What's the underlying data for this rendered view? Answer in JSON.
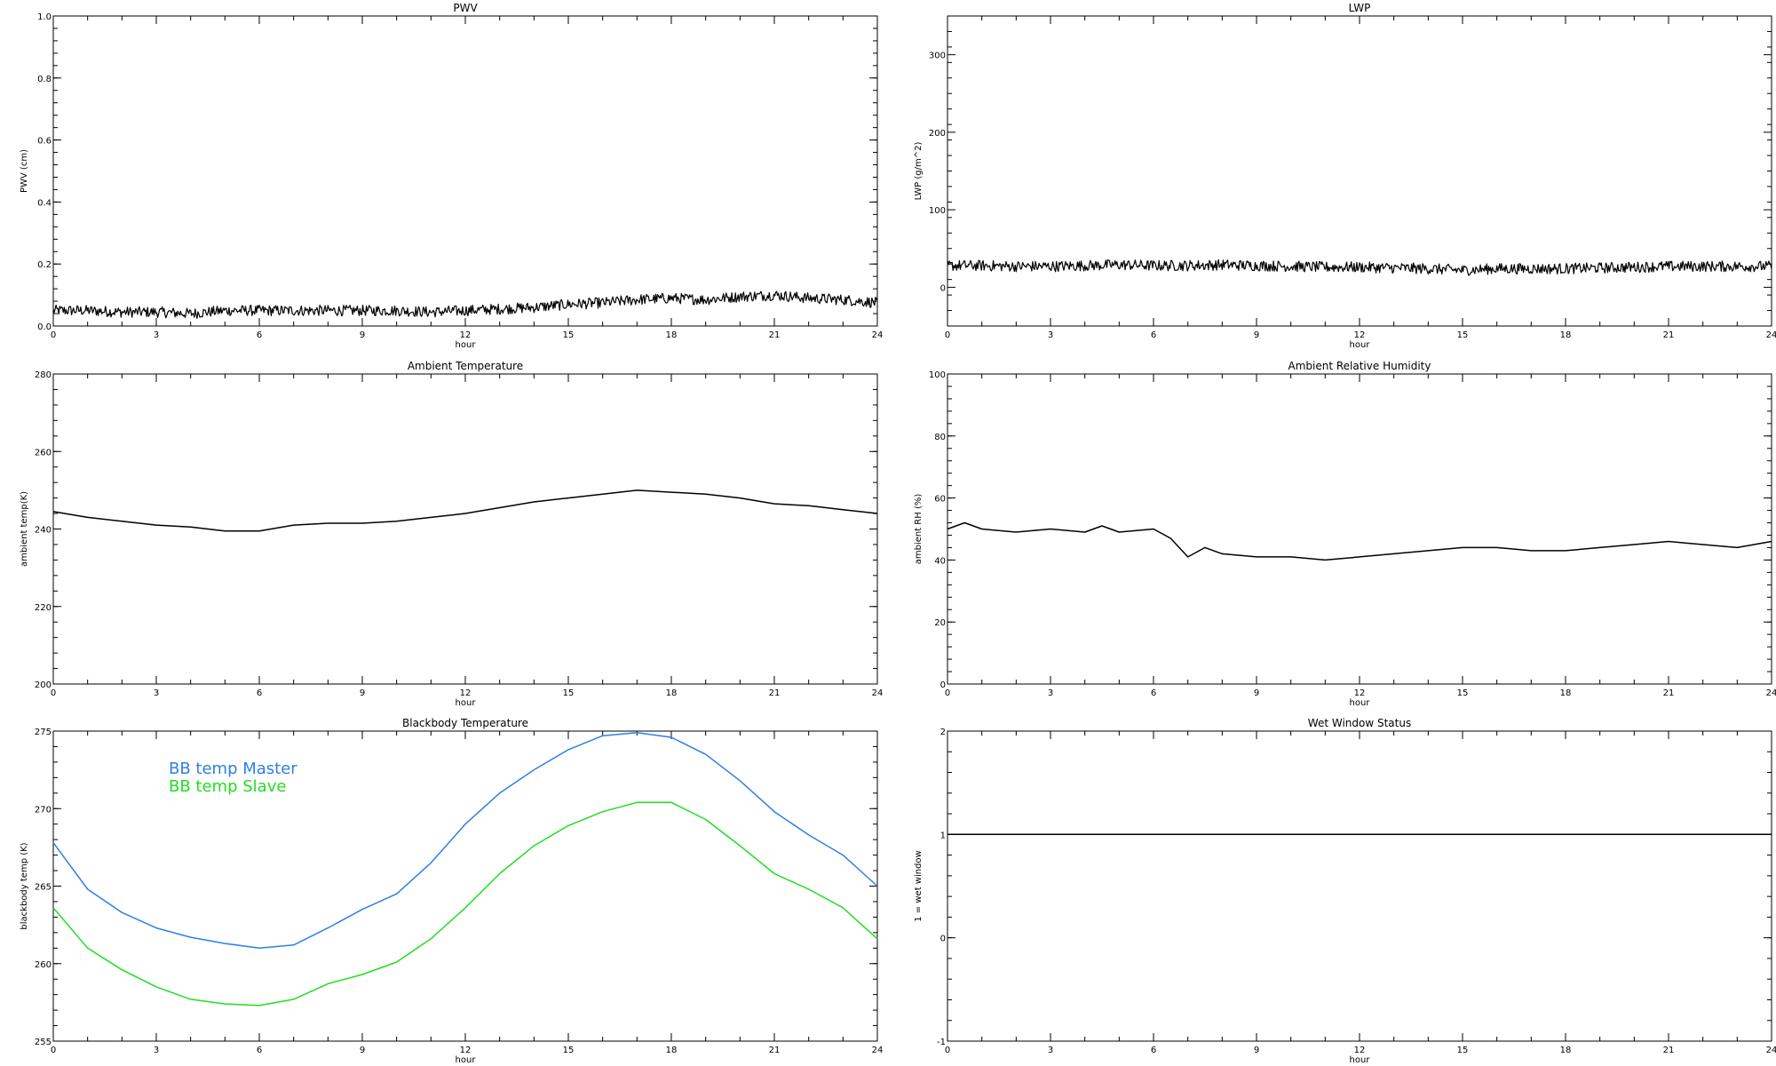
{
  "chart_data": [
    {
      "id": "pwv",
      "type": "line",
      "title": "PWV",
      "xlabel": "hour",
      "ylabel": "PWV (cm)",
      "xlim": [
        0,
        24
      ],
      "ylim": [
        0,
        1
      ],
      "xticks": [
        "0",
        "3",
        "6",
        "9",
        "12",
        "15",
        "18",
        "21",
        "24"
      ],
      "yticks": [
        "0.0",
        "0.2",
        "0.4",
        "0.6",
        "0.8",
        "1.0"
      ],
      "yticks_values": [
        0,
        0.2,
        0.4,
        0.6,
        0.8,
        1.0
      ],
      "noisy": true,
      "series": [
        {
          "color": "#000000",
          "x": [
            0,
            1,
            2,
            3,
            4,
            5,
            6,
            7,
            8,
            9,
            10,
            11,
            12,
            13,
            14,
            15,
            16,
            17,
            18,
            19,
            20,
            21,
            22,
            23,
            24
          ],
          "y": [
            0.05,
            0.05,
            0.045,
            0.045,
            0.04,
            0.05,
            0.05,
            0.05,
            0.05,
            0.05,
            0.05,
            0.045,
            0.05,
            0.055,
            0.06,
            0.07,
            0.075,
            0.085,
            0.09,
            0.085,
            0.095,
            0.1,
            0.09,
            0.085,
            0.075
          ]
        }
      ]
    },
    {
      "id": "lwp",
      "type": "line",
      "title": "LWP",
      "xlabel": "hour",
      "ylabel": "LWP (g/m^2)",
      "xlim": [
        0,
        24
      ],
      "ylim": [
        -50,
        350
      ],
      "xticks": [
        "0",
        "3",
        "6",
        "9",
        "12",
        "15",
        "18",
        "21",
        "24"
      ],
      "yticks": [
        "0",
        "100",
        "200",
        "300"
      ],
      "yticks_values": [
        0,
        100,
        200,
        300
      ],
      "noisy": true,
      "series": [
        {
          "color": "#000000",
          "x": [
            0,
            1,
            2,
            3,
            4,
            5,
            6,
            7,
            8,
            9,
            10,
            11,
            12,
            13,
            14,
            15,
            16,
            17,
            18,
            19,
            20,
            21,
            22,
            23,
            24
          ],
          "y": [
            28,
            28,
            27,
            27,
            28,
            29,
            28,
            28,
            29,
            28,
            27,
            26,
            26,
            25,
            24,
            22,
            24,
            24,
            24,
            25,
            26,
            27,
            27,
            27,
            27
          ]
        }
      ]
    },
    {
      "id": "ambient-temp",
      "type": "line",
      "title": "Ambient Temperature",
      "xlabel": "hour",
      "ylabel": "ambient temp(K)",
      "xlim": [
        0,
        24
      ],
      "ylim": [
        200,
        280
      ],
      "xticks": [
        "0",
        "3",
        "6",
        "9",
        "12",
        "15",
        "18",
        "21",
        "24"
      ],
      "yticks": [
        "200",
        "220",
        "240",
        "260",
        "280"
      ],
      "yticks_values": [
        200,
        220,
        240,
        260,
        280
      ],
      "noisy": false,
      "series": [
        {
          "color": "#000000",
          "x": [
            0,
            1,
            2,
            3,
            4,
            5,
            6,
            7,
            8,
            9,
            10,
            11,
            12,
            13,
            14,
            15,
            16,
            17,
            18,
            19,
            20,
            21,
            22,
            23,
            24
          ],
          "y": [
            244.5,
            243,
            242,
            241,
            240.5,
            239.5,
            239.5,
            241,
            241.5,
            241.5,
            242,
            243,
            244,
            245.5,
            247,
            248,
            249,
            250,
            249.5,
            249,
            248,
            246.5,
            246,
            245,
            244
          ]
        }
      ]
    },
    {
      "id": "ambient-rh",
      "type": "line",
      "title": "Ambient Relative Humidity",
      "xlabel": "hour",
      "ylabel": "ambient RH (%)",
      "xlim": [
        0,
        24
      ],
      "ylim": [
        0,
        100
      ],
      "xticks": [
        "0",
        "3",
        "6",
        "9",
        "12",
        "15",
        "18",
        "21",
        "24"
      ],
      "yticks": [
        "0",
        "20",
        "40",
        "60",
        "80",
        "100"
      ],
      "yticks_values": [
        0,
        20,
        40,
        60,
        80,
        100
      ],
      "noisy": false,
      "series": [
        {
          "color": "#000000",
          "x": [
            0,
            0.5,
            1,
            2,
            3,
            4,
            4.5,
            5,
            6,
            6.5,
            7,
            7.5,
            8,
            9,
            10,
            11,
            12,
            13,
            14,
            15,
            16,
            17,
            18,
            19,
            20,
            21,
            22,
            23,
            24
          ],
          "y": [
            50,
            52,
            50,
            49,
            50,
            49,
            51,
            49,
            50,
            47,
            41,
            44,
            42,
            41,
            41,
            40,
            41,
            42,
            43,
            44,
            44,
            43,
            43,
            44,
            45,
            46,
            45,
            44,
            46
          ]
        }
      ]
    },
    {
      "id": "blackbody-temp",
      "type": "line",
      "title": "Blackbody Temperature",
      "xlabel": "hour",
      "ylabel": "blackbody temp (K)",
      "xlim": [
        0,
        24
      ],
      "ylim": [
        255,
        275
      ],
      "xticks": [
        "0",
        "3",
        "6",
        "9",
        "12",
        "15",
        "18",
        "21",
        "24"
      ],
      "yticks": [
        "255",
        "260",
        "265",
        "270",
        "275"
      ],
      "yticks_values": [
        255,
        260,
        265,
        270,
        275
      ],
      "noisy": false,
      "legend": {
        "location": "upper-left",
        "entries": [
          "BB temp Master",
          "BB temp Slave"
        ]
      },
      "series": [
        {
          "name": "BB temp Master",
          "color": "#2f7fe6",
          "x": [
            0,
            1,
            2,
            3,
            4,
            5,
            6,
            7,
            8,
            9,
            10,
            11,
            12,
            13,
            14,
            15,
            16,
            17,
            18,
            19,
            20,
            21,
            22,
            23,
            24
          ],
          "y": [
            267.8,
            264.8,
            263.3,
            262.3,
            261.7,
            261.3,
            261,
            261.2,
            262.3,
            263.5,
            264.5,
            266.5,
            269,
            271,
            272.5,
            273.8,
            274.7,
            274.9,
            274.6,
            273.5,
            271.8,
            269.8,
            268.3,
            267,
            265
          ]
        },
        {
          "name": "BB temp Slave",
          "color": "#22dd22",
          "x": [
            0,
            1,
            2,
            3,
            4,
            5,
            6,
            7,
            8,
            9,
            10,
            11,
            12,
            13,
            14,
            15,
            16,
            17,
            18,
            19,
            20,
            21,
            22,
            23,
            24
          ],
          "y": [
            263.6,
            261,
            259.6,
            258.5,
            257.7,
            257.4,
            257.3,
            257.7,
            258.7,
            259.3,
            260.1,
            261.6,
            263.6,
            265.8,
            267.6,
            268.9,
            269.8,
            270.4,
            270.4,
            269.3,
            267.6,
            265.8,
            264.8,
            263.6,
            261.6
          ]
        }
      ]
    },
    {
      "id": "wet-window",
      "type": "line",
      "title": "Wet Window Status",
      "xlabel": "hour",
      "ylabel": "1 = wet window",
      "xlim": [
        0,
        24
      ],
      "ylim": [
        -1,
        2
      ],
      "xticks": [
        "0",
        "3",
        "6",
        "9",
        "12",
        "15",
        "18",
        "21",
        "24"
      ],
      "yticks": [
        "-1",
        "0",
        "1",
        "2"
      ],
      "yticks_values": [
        -1,
        0,
        1,
        2
      ],
      "noisy": false,
      "series": [
        {
          "color": "#000000",
          "x": [
            0,
            24
          ],
          "y": [
            1,
            1
          ]
        }
      ]
    }
  ]
}
